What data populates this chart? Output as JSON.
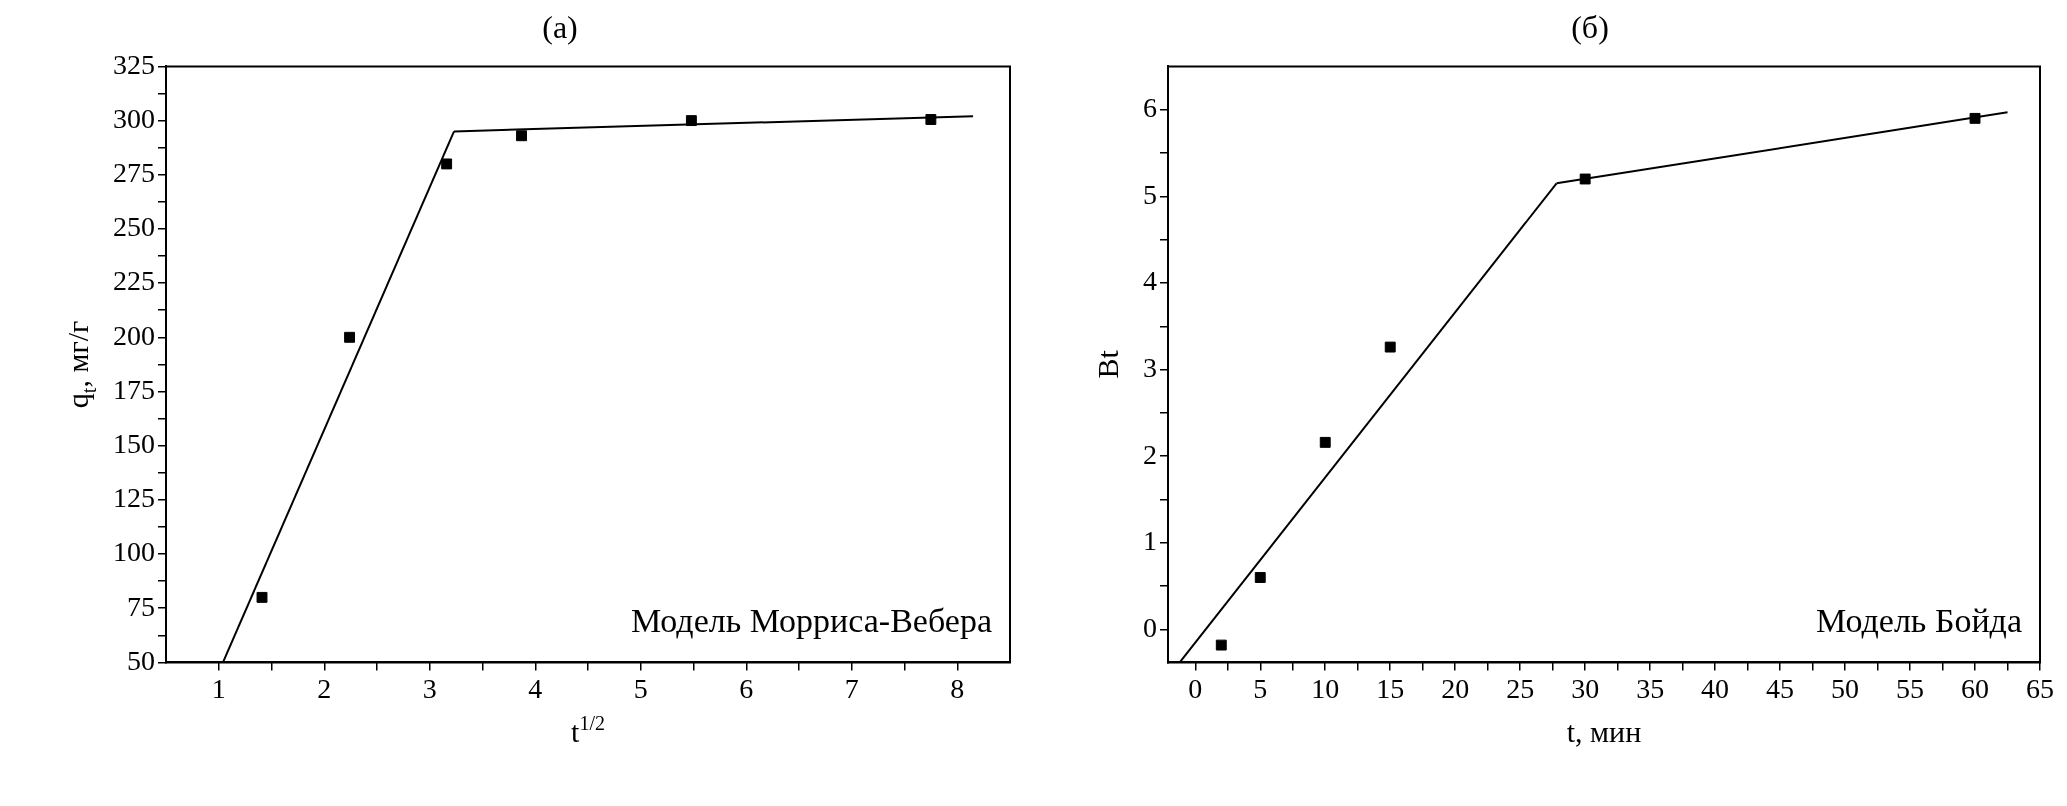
{
  "chart_data": [
    {
      "type": "scatter",
      "title": "(а)",
      "xlabel": "t$^{1/2}$",
      "ylabel": "q$_{t}$, мг/г",
      "grid": false,
      "legend": false,
      "marker": "square",
      "xlim": [
        0.5,
        8.5
      ],
      "ylim": [
        50,
        325
      ],
      "xticks": [
        1,
        {
          "value": 1.5,
          "label": null
        },
        2,
        {
          "value": 2.5,
          "label": null
        },
        3,
        {
          "value": 3.5,
          "label": null
        },
        4,
        {
          "value": 4.5,
          "label": null
        },
        5,
        {
          "value": 5.5,
          "label": null
        },
        6,
        {
          "value": 6.5,
          "label": null
        },
        7,
        {
          "value": 7.5,
          "label": null
        },
        8
      ],
      "yticks": [
        50,
        {
          "value": 62.5,
          "label": null
        },
        75,
        {
          "value": 87.5,
          "label": null
        },
        100,
        {
          "value": 112.5,
          "label": null
        },
        125,
        {
          "value": 137.5,
          "label": null
        },
        150,
        {
          "value": 162.5,
          "label": null
        },
        175,
        {
          "value": 187.5,
          "label": null
        },
        200,
        {
          "value": 212.5,
          "label": null
        },
        225,
        {
          "value": 237.5,
          "label": null
        },
        250,
        {
          "value": 262.5,
          "label": null
        },
        275,
        {
          "value": 287.5,
          "label": null
        },
        300,
        {
          "value": 312.5,
          "label": null
        },
        325
      ],
      "annotations": [
        "Модель Морриса-Вебера"
      ],
      "series": [
        {
          "color": "#000000",
          "x": [
            1.41,
            2.24,
            3.16,
            3.87,
            5.48,
            7.75
          ],
          "values": [
            80,
            200,
            280,
            293,
            300,
            300.5
          ]
        },
        {
          "type": "line",
          "marker": "none",
          "color": "#000000",
          "x": [
            1.04,
            3.23
          ],
          "values": [
            50,
            295
          ]
        },
        {
          "type": "line",
          "marker": "none",
          "color": "#000000",
          "x": [
            3.23,
            8.15
          ],
          "values": [
            295,
            302
          ]
        }
      ]
    },
    {
      "type": "scatter",
      "title": "(б)",
      "xlabel": "t, мин",
      "ylabel": "Bt",
      "grid": false,
      "legend": false,
      "marker": "square",
      "xlim": [
        -2.1,
        65
      ],
      "ylim": [
        -0.38,
        6.5
      ],
      "xticks": [
        0,
        {
          "value": 2.5,
          "label": null
        },
        5,
        {
          "value": 7.5,
          "label": null
        },
        10,
        {
          "value": 12.5,
          "label": null
        },
        15,
        {
          "value": 17.5,
          "label": null
        },
        20,
        {
          "value": 22.5,
          "label": null
        },
        25,
        {
          "value": 27.5,
          "label": null
        },
        30,
        {
          "value": 32.5,
          "label": null
        },
        35,
        {
          "value": 37.5,
          "label": null
        },
        40,
        {
          "value": 42.5,
          "label": null
        },
        45,
        {
          "value": 47.5,
          "label": null
        },
        50,
        {
          "value": 52.5,
          "label": null
        },
        55,
        {
          "value": 57.5,
          "label": null
        },
        60,
        {
          "value": 62.5,
          "label": null
        },
        65
      ],
      "yticks": [
        0,
        {
          "value": 0.5,
          "label": null
        },
        1,
        {
          "value": 1.5,
          "label": null
        },
        2,
        {
          "value": 2.5,
          "label": null
        },
        3,
        {
          "value": 3.5,
          "label": null
        },
        4,
        {
          "value": 4.5,
          "label": null
        },
        5,
        {
          "value": 5.5,
          "label": null
        },
        6
      ],
      "annotations": [
        "Модель Бойда"
      ],
      "series": [
        {
          "color": "#000000",
          "x": [
            2,
            5,
            10,
            15,
            30,
            60
          ],
          "values": [
            -0.18,
            0.6,
            2.16,
            3.26,
            5.2,
            5.9
          ]
        },
        {
          "type": "line",
          "marker": "none",
          "color": "#000000",
          "x": [
            -1.2,
            27.8
          ],
          "values": [
            -0.38,
            5.15
          ]
        },
        {
          "type": "line",
          "marker": "none",
          "color": "#000000",
          "x": [
            27.8,
            62.5
          ],
          "values": [
            5.15,
            5.97
          ]
        }
      ]
    }
  ]
}
